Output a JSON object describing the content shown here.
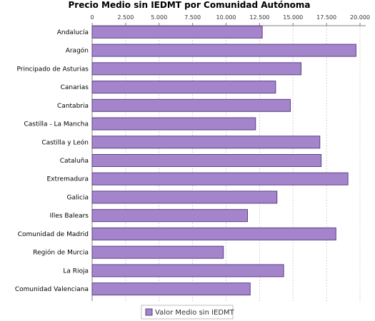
{
  "chart_data": {
    "type": "bar",
    "orientation": "horizontal",
    "title": "Precio Medio sin IEDMT por Comunidad Autónoma",
    "xlabel": "",
    "ylabel": "",
    "xlim": [
      0,
      20000
    ],
    "x_ticks": [
      0,
      2500,
      5000,
      7500,
      10000,
      12500,
      15000,
      17500,
      20000
    ],
    "x_tick_labels": [
      "0",
      "2.500",
      "5.000",
      "7.500",
      "10.000",
      "12.500",
      "15.000",
      "17.500",
      "20.000"
    ],
    "axis_position": "top",
    "grid": true,
    "legend_position": "bottom",
    "bar_color": "#a485cc",
    "bar_edge_color": "#5b3f86",
    "categories": [
      "Andalucía",
      "Aragón",
      "Principado de Asturias",
      "Canarias",
      "Cantabria",
      "Castilla - La Mancha",
      "Castilla y León",
      "Cataluña",
      "Extremadura",
      "Galicia",
      "Illes Balears",
      "Comunidad de Madrid",
      "Región de Murcia",
      "La Rioja",
      "Comunidad Valenciana"
    ],
    "series": [
      {
        "name": "Valor Medio sin IEDMT",
        "values": [
          12700,
          19700,
          15600,
          13700,
          14800,
          12200,
          17000,
          17100,
          19100,
          13800,
          11600,
          18200,
          9800,
          14300,
          11800
        ]
      }
    ]
  }
}
